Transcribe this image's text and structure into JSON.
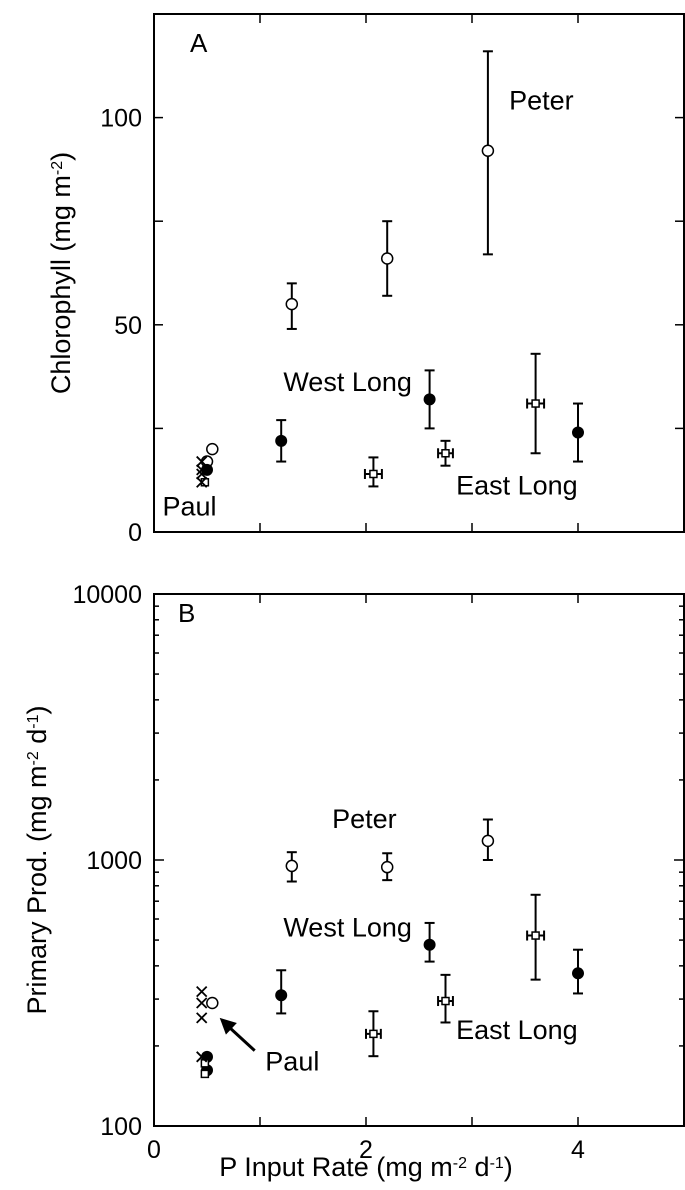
{
  "chart_data": [
    {
      "type": "scatter",
      "panel_label": "A",
      "ylabel": "Chlorophyll (mg m",
      "ylabel_sup": "-2",
      "ylabel_end": ")",
      "xlabel": "",
      "xlim": [
        0,
        5
      ],
      "ylim": [
        0,
        125
      ],
      "y_scale": "linear",
      "xticks": [
        "0",
        "2",
        "4"
      ],
      "yticks": [
        {
          "value": 0,
          "label": "0"
        },
        {
          "value": 50,
          "label": "50"
        },
        {
          "value": 100,
          "label": "100"
        }
      ],
      "series": [
        {
          "name": "Peter",
          "marker": "open-circle",
          "points": [
            {
              "x": 0.55,
              "y": 20
            },
            {
              "x": 0.5,
              "y": 17
            },
            {
              "x": 1.3,
              "y": 55,
              "ylo": 49,
              "yhi": 60
            },
            {
              "x": 2.2,
              "y": 66,
              "ylo": 57,
              "yhi": 75
            },
            {
              "x": 3.15,
              "y": 92,
              "ylo": 67,
              "yhi": 116
            }
          ]
        },
        {
          "name": "West Long",
          "marker": "filled-circle",
          "points": [
            {
              "x": 0.5,
              "y": 15
            },
            {
              "x": 1.2,
              "y": 22,
              "ylo": 17,
              "yhi": 27
            },
            {
              "x": 2.6,
              "y": 32,
              "ylo": 25,
              "yhi": 39
            },
            {
              "x": 4.0,
              "y": 24,
              "ylo": 17,
              "yhi": 31
            }
          ]
        },
        {
          "name": "East Long",
          "marker": "open-square",
          "points": [
            {
              "x": 0.48,
              "y": 12
            },
            {
              "x": 2.07,
              "y": 14,
              "ylo": 11,
              "yhi": 18,
              "xerr": 0.08
            },
            {
              "x": 2.75,
              "y": 19,
              "ylo": 16,
              "yhi": 22,
              "xerr": 0.07
            },
            {
              "x": 3.6,
              "y": 31,
              "ylo": 19,
              "yhi": 43,
              "xerr": 0.08
            }
          ]
        },
        {
          "name": "Paul",
          "marker": "x",
          "points": [
            {
              "x": 0.45,
              "y": 17
            },
            {
              "x": 0.45,
              "y": 15
            },
            {
              "x": 0.45,
              "y": 14
            },
            {
              "x": 0.45,
              "y": 12
            }
          ]
        }
      ],
      "annotations": [
        {
          "text": "Peter",
          "x": 3.35,
          "y": 102
        },
        {
          "text": "West Long",
          "x": 1.22,
          "y": 34
        },
        {
          "text": "East Long",
          "x": 2.85,
          "y": 9
        },
        {
          "text": "Paul",
          "x": 0.08,
          "y": 4
        }
      ]
    },
    {
      "type": "scatter",
      "panel_label": "B",
      "ylabel": "Primary Prod. (mg m",
      "ylabel_sup": "-2",
      "ylabel_mid": " d",
      "ylabel_sup2": "-1",
      "ylabel_end": ")",
      "xlabel": "P Input Rate (mg m",
      "xlabel_sup": "-2",
      "xlabel_mid": " d",
      "xlabel_sup2": "-1",
      "xlabel_end": ")",
      "xlim": [
        0,
        5
      ],
      "ylim": [
        100,
        10000
      ],
      "y_scale": "log",
      "xticks": [
        "0",
        "2",
        "4"
      ],
      "yticks": [
        {
          "value": 100,
          "label": "100"
        },
        {
          "value": 1000,
          "label": "1000"
        },
        {
          "value": 10000,
          "label": "10000"
        }
      ],
      "series": [
        {
          "name": "Peter",
          "marker": "open-circle",
          "points": [
            {
              "x": 0.55,
              "y": 290
            },
            {
              "x": 1.3,
              "y": 950,
              "ylo": 830,
              "yhi": 1070
            },
            {
              "x": 2.2,
              "y": 940,
              "ylo": 840,
              "yhi": 1060
            },
            {
              "x": 3.15,
              "y": 1180,
              "ylo": 1000,
              "yhi": 1420
            }
          ]
        },
        {
          "name": "West Long",
          "marker": "filled-circle",
          "points": [
            {
              "x": 0.5,
              "y": 182
            },
            {
              "x": 0.5,
              "y": 162
            },
            {
              "x": 1.2,
              "y": 310,
              "ylo": 265,
              "yhi": 385
            },
            {
              "x": 2.6,
              "y": 480,
              "ylo": 415,
              "yhi": 580
            },
            {
              "x": 4.0,
              "y": 375,
              "ylo": 315,
              "yhi": 460
            }
          ]
        },
        {
          "name": "East Long",
          "marker": "open-square",
          "points": [
            {
              "x": 0.48,
              "y": 172
            },
            {
              "x": 0.48,
              "y": 157
            },
            {
              "x": 2.07,
              "y": 222,
              "ylo": 183,
              "yhi": 270,
              "xerr": 0.07
            },
            {
              "x": 2.75,
              "y": 295,
              "ylo": 245,
              "yhi": 370,
              "xerr": 0.07
            },
            {
              "x": 3.6,
              "y": 520,
              "ylo": 355,
              "yhi": 740,
              "xerr": 0.08
            }
          ]
        },
        {
          "name": "Paul",
          "marker": "x",
          "points": [
            {
              "x": 0.45,
              "y": 320
            },
            {
              "x": 0.45,
              "y": 290
            },
            {
              "x": 0.45,
              "y": 255
            },
            {
              "x": 0.45,
              "y": 182
            }
          ]
        }
      ],
      "annotations": [
        {
          "text": "Peter",
          "x": 1.68,
          "y": 1320
        },
        {
          "text": "West Long",
          "x": 1.22,
          "y": 515
        },
        {
          "text": "East Long",
          "x": 2.85,
          "y": 212
        },
        {
          "text": "Paul",
          "x": 1.05,
          "y": 162
        }
      ],
      "arrow": {
        "from_x": 0.95,
        "from_y": 192,
        "to_x": 0.62,
        "to_y": 255
      }
    }
  ]
}
